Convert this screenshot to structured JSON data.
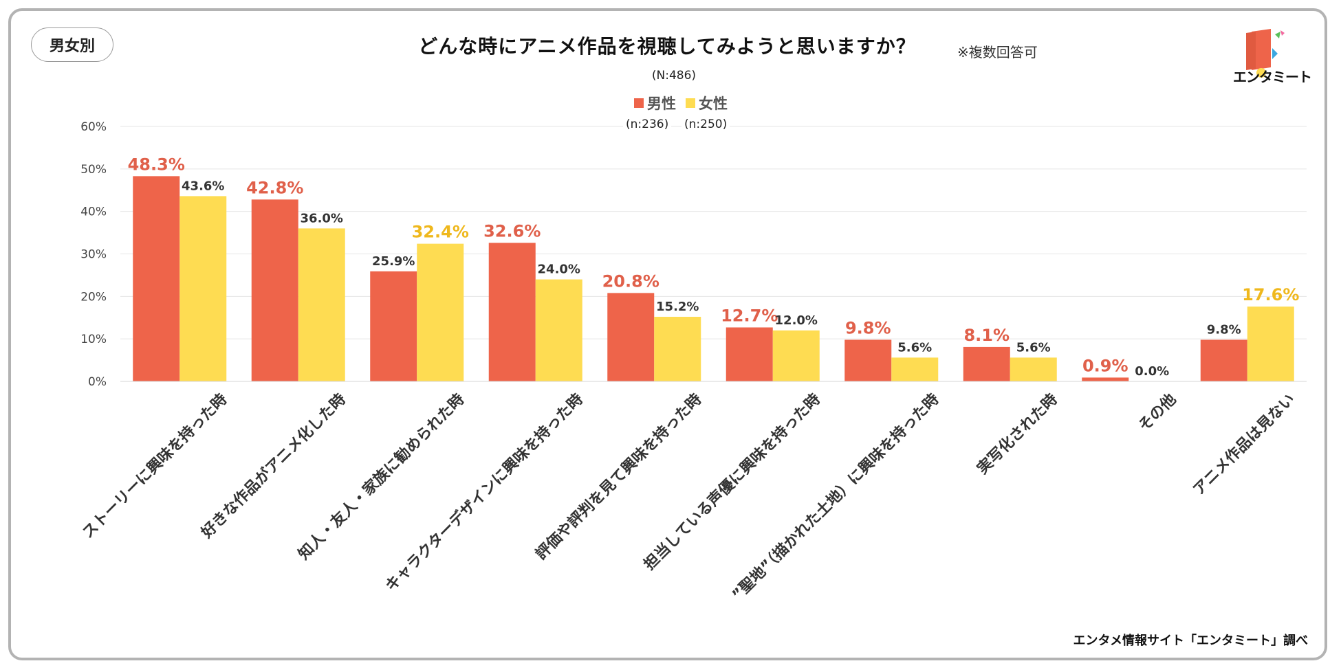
{
  "segment_tag": "男女別",
  "title": "どんな時にアニメ作品を視聴してみようと思いますか？",
  "title_note": "※複数回答可",
  "total_n": "(N:486)",
  "legend": {
    "male_label": "男性",
    "female_label": "女性",
    "male_n": "(n:236)",
    "female_n": "(n:250)"
  },
  "logo_text": "エンタミート",
  "credit": "エンタメ情報サイト「エンタミート」調べ",
  "colors": {
    "male": "#EE644A",
    "female": "#FEDC52",
    "male_highlight_label": "#E0604A",
    "female_highlight_label": "#EFB81D",
    "grid": "#E6E6E6"
  },
  "chart_data": {
    "type": "bar",
    "title": "どんな時にアニメ作品を視聴してみようと思いますか？",
    "ylim": [
      0,
      60
    ],
    "yticks": [
      "0%",
      "10%",
      "20%",
      "30%",
      "40%",
      "50%",
      "60%"
    ],
    "categories": [
      "ストーリーに興味を持った時",
      "好きな作品がアニメ化した時",
      "知人・友人・家族に勧められた時",
      "キャラクターデザインに興味を持った時",
      "評価や評判を見て興味を持った時",
      "担当している声優に興味を持った時",
      "”聖地”（描かれた土地）に興味を持った時",
      "実写化された時",
      "その他",
      "アニメ作品は見ない"
    ],
    "series": [
      {
        "name": "男性",
        "values": [
          48.3,
          42.8,
          25.9,
          32.6,
          20.8,
          12.7,
          9.8,
          8.1,
          0.9,
          9.8
        ],
        "labels": [
          "48.3%",
          "42.8%",
          "25.9%",
          "32.6%",
          "20.8%",
          "12.7%",
          "9.8%",
          "8.1%",
          "0.9%",
          "9.8%"
        ]
      },
      {
        "name": "女性",
        "values": [
          43.6,
          36.0,
          32.4,
          24.0,
          15.2,
          12.0,
          5.6,
          5.6,
          0.0,
          17.6
        ],
        "labels": [
          "43.6%",
          "36.0%",
          "32.4%",
          "24.0%",
          "15.2%",
          "12.0%",
          "5.6%",
          "5.6%",
          "0.0%",
          "17.6%"
        ]
      }
    ]
  }
}
